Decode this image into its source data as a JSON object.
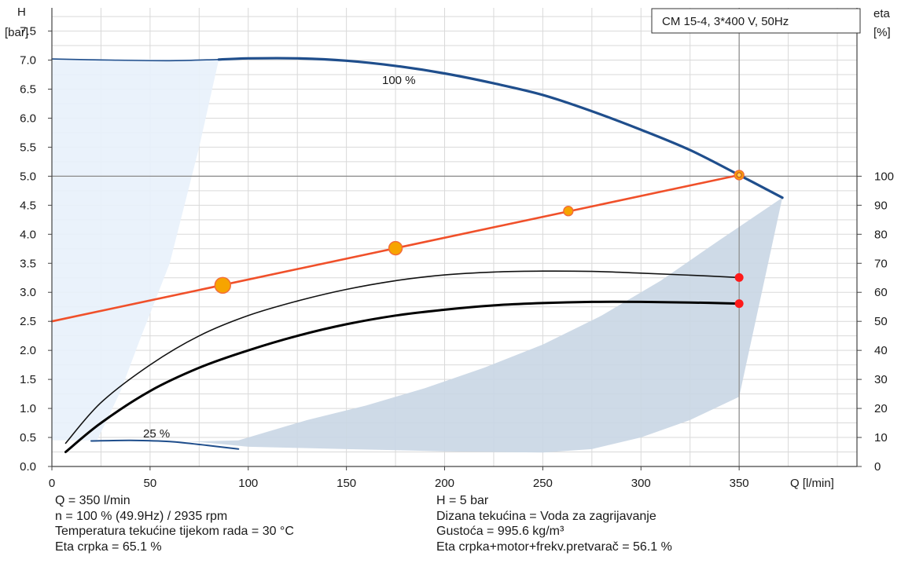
{
  "chart_data": {
    "type": "line",
    "title": "CM 15-4, 3*400 V, 50Hz",
    "xlabel": "Q [l/min]",
    "ylabel_left_line1": "H",
    "ylabel_left_line2": "[bar]",
    "ylabel_right_line1": "eta",
    "ylabel_right_line2": "[%]",
    "xlim": [
      0,
      410
    ],
    "ylim": [
      0,
      7.9
    ],
    "y2lim": [
      0,
      158
    ],
    "x_ticks": [
      "0",
      "50",
      "100",
      "150",
      "200",
      "250",
      "300",
      "350"
    ],
    "y_ticks": [
      "0.0",
      "0.5",
      "1.0",
      "1.5",
      "2.0",
      "2.5",
      "3.0",
      "3.5",
      "4.0",
      "4.5",
      "5.0",
      "5.5",
      "6.0",
      "6.5",
      "7.0",
      "7.5"
    ],
    "y2_ticks": [
      "0",
      "10",
      "20",
      "30",
      "40",
      "50",
      "60",
      "70",
      "80",
      "90",
      "100"
    ],
    "grid": true,
    "legend": "top-right",
    "speed_labels": {
      "max": "100 %",
      "min": "25 %"
    },
    "series": [
      {
        "curve": "head_100",
        "color": "#1f4e8c",
        "x": [
          85,
          100,
          125,
          150,
          175,
          200,
          225,
          250,
          275,
          300,
          325,
          350,
          372
        ],
        "y": [
          7.01,
          7.03,
          7.03,
          6.99,
          6.9,
          6.77,
          6.6,
          6.4,
          6.12,
          5.8,
          5.45,
          5.02,
          4.63
        ]
      },
      {
        "curve": "head_100_extension",
        "color": "#1f4e8c",
        "x": [
          0,
          30,
          60,
          85
        ],
        "y": [
          7.02,
          7.0,
          6.99,
          7.01
        ]
      },
      {
        "curve": "head_25",
        "color": "#1f4e8c",
        "x": [
          20,
          40,
          60,
          80,
          95
        ],
        "y": [
          0.44,
          0.45,
          0.43,
          0.36,
          0.3
        ]
      },
      {
        "curve": "system",
        "color": "#f0502a",
        "x": [
          0,
          350
        ],
        "y": [
          2.5,
          5.02
        ]
      },
      {
        "curve": "eta_pump",
        "color": "#111111",
        "x": [
          7,
          25,
          50,
          75,
          100,
          125,
          150,
          175,
          200,
          225,
          250,
          275,
          300,
          325,
          350
        ],
        "y": [
          8,
          22,
          35,
          45,
          52,
          57,
          61,
          64,
          66,
          67,
          67.3,
          67.2,
          66.6,
          65.9,
          65.1
        ]
      },
      {
        "curve": "eta_total",
        "color": "#000000",
        "x": [
          7,
          25,
          50,
          75,
          100,
          125,
          150,
          175,
          200,
          225,
          250,
          275,
          300,
          325,
          350
        ],
        "y": [
          5,
          15,
          26,
          34,
          40,
          45,
          49,
          52,
          54,
          55.5,
          56.3,
          56.7,
          56.7,
          56.5,
          56.1
        ]
      }
    ],
    "area": {
      "x": [
        23,
        50,
        75,
        85,
        100,
        125,
        150,
        175,
        200,
        225,
        250,
        275,
        300,
        325,
        350,
        372,
        340,
        310,
        280,
        250,
        220,
        190,
        160,
        130,
        110,
        95,
        60,
        40
      ],
      "y": [
        0.45,
        0.45,
        0.42,
        0.39,
        0.34,
        0.32,
        0.3,
        0.28,
        0.26,
        0.25,
        0.24,
        0.3,
        0.5,
        0.8,
        1.2,
        4.63,
        3.9,
        3.2,
        2.6,
        2.1,
        1.7,
        1.35,
        1.05,
        0.8,
        0.6,
        0.45,
        0.42,
        0.44
      ]
    },
    "light_area": {
      "x": [
        0,
        85,
        75,
        60,
        45,
        35,
        28,
        23,
        0
      ],
      "y": [
        7.02,
        7.01,
        5.5,
        3.5,
        2.2,
        1.3,
        0.8,
        0.45,
        0.45
      ]
    },
    "duty_point": {
      "x": 350,
      "y": 5.02
    },
    "system_markers": [
      {
        "x": 87,
        "y": 3.12,
        "size": "large"
      },
      {
        "x": 175,
        "y": 3.76,
        "size": "medium"
      },
      {
        "x": 263,
        "y": 4.4,
        "size": "small"
      },
      {
        "x": 350,
        "y": 5.02,
        "size": "small"
      }
    ],
    "eta_markers": [
      {
        "x": 350,
        "y": 65.1
      },
      {
        "x": 350,
        "y": 56.1
      }
    ],
    "reference_lines": {
      "x": 350,
      "y": 5.0
    }
  },
  "info_left": [
    "Q = 350 l/min",
    "n = 100 % (49.9Hz) / 2935 rpm",
    "Temperatura tekućine tijekom rada = 30 °C",
    "Eta crpka = 65.1 %"
  ],
  "info_right": [
    "H = 5 bar",
    "Dizana tekućina = Voda za zagrijavanje",
    "Gustoća = 995.6 kg/m³",
    "Eta crpka+motor+frekv.pretvarač = 56.1 %"
  ]
}
